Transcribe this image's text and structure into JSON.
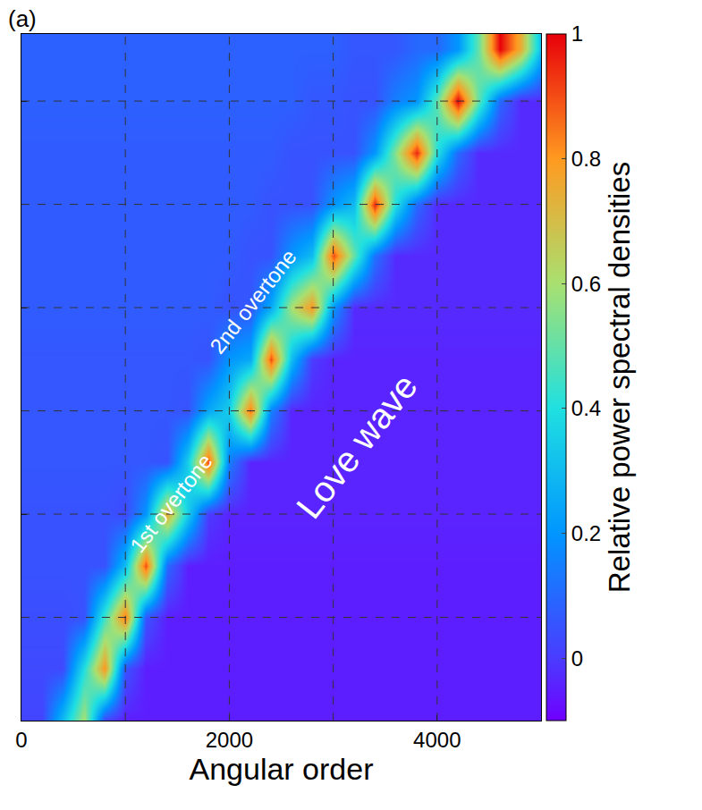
{
  "chart_data": {
    "type": "heatmap",
    "panel_label": "(a)",
    "x_label": "Angular order",
    "xlim": [
      0,
      5000
    ],
    "xticks": [
      0,
      2000,
      4000
    ],
    "ylim": [
      0,
      6.65
    ],
    "yticks": [
      1,
      2,
      3,
      4,
      5,
      6
    ],
    "tick_labels": "x",
    "grid": true,
    "annotations": [
      "1st overtone",
      "2nd overtone",
      "Love wave"
    ],
    "x": [
      0,
      200,
      400,
      600,
      800,
      1000,
      1200,
      1400,
      1600,
      1800,
      2000,
      2200,
      2400,
      2600,
      2800,
      3000,
      3200,
      3400,
      3600,
      3800,
      4000,
      4200,
      4400,
      4600,
      4800,
      5000
    ],
    "y": [
      0,
      0.5,
      1,
      1.5,
      2,
      2.5,
      3,
      3.5,
      4,
      4.5,
      5,
      5.5,
      6,
      6.5
    ],
    "z": [
      [
        0.02,
        0.02,
        0.3,
        0.6,
        0.02,
        -0.05,
        -0.05,
        -0.05,
        -0.05,
        -0.05,
        -0.05,
        -0.05,
        -0.05,
        -0.05,
        -0.05,
        -0.05,
        -0.05,
        -0.05,
        -0.05,
        -0.05,
        -0.05,
        -0.05,
        -0.05,
        -0.05,
        -0.05,
        -0.05
      ],
      [
        0.03,
        0.03,
        0.03,
        0.4,
        0.8,
        0.05,
        -0.05,
        -0.05,
        -0.05,
        -0.05,
        -0.05,
        -0.05,
        -0.05,
        -0.05,
        -0.05,
        -0.05,
        -0.05,
        -0.05,
        -0.05,
        -0.05,
        -0.05,
        -0.05,
        -0.05,
        -0.05,
        -0.05,
        -0.05
      ],
      [
        0.04,
        0.04,
        0.04,
        0.05,
        0.45,
        0.85,
        0.05,
        -0.05,
        -0.05,
        -0.05,
        -0.05,
        -0.05,
        -0.05,
        -0.05,
        -0.05,
        -0.05,
        -0.05,
        -0.05,
        -0.05,
        -0.05,
        -0.05,
        -0.05,
        -0.05,
        -0.05,
        -0.05,
        -0.05
      ],
      [
        0.05,
        0.05,
        0.05,
        0.05,
        0.05,
        0.3,
        0.9,
        0.1,
        -0.05,
        -0.05,
        -0.05,
        -0.05,
        -0.05,
        -0.05,
        -0.05,
        -0.05,
        -0.05,
        -0.05,
        -0.05,
        -0.05,
        -0.05,
        -0.05,
        -0.05,
        -0.05,
        -0.05,
        -0.05
      ],
      [
        0.05,
        0.05,
        0.05,
        0.05,
        0.05,
        0.03,
        0.2,
        0.75,
        0.35,
        0.0,
        -0.04,
        -0.04,
        -0.04,
        -0.04,
        -0.04,
        -0.04,
        -0.04,
        -0.04,
        -0.04,
        -0.04,
        -0.04,
        -0.04,
        -0.04,
        -0.04,
        -0.04,
        -0.04
      ],
      [
        0.06,
        0.06,
        0.06,
        0.06,
        0.06,
        0.06,
        0.06,
        0.05,
        0.35,
        0.9,
        0.15,
        -0.04,
        -0.04,
        -0.04,
        -0.04,
        -0.04,
        -0.04,
        -0.04,
        -0.04,
        -0.04,
        -0.04,
        -0.04,
        -0.04,
        -0.04,
        -0.04,
        -0.04
      ],
      [
        0.06,
        0.06,
        0.06,
        0.06,
        0.06,
        0.06,
        0.06,
        0.06,
        0.05,
        0.25,
        0.35,
        0.85,
        0.15,
        -0.04,
        -0.04,
        -0.04,
        -0.04,
        -0.04,
        -0.04,
        -0.04,
        -0.04,
        -0.04,
        -0.04,
        -0.04,
        -0.04,
        -0.04
      ],
      [
        0.06,
        0.06,
        0.06,
        0.06,
        0.06,
        0.06,
        0.06,
        0.06,
        0.06,
        0.05,
        0.2,
        0.25,
        0.9,
        0.3,
        0.0,
        -0.04,
        -0.04,
        -0.04,
        -0.04,
        -0.04,
        -0.04,
        -0.04,
        -0.04,
        -0.04,
        -0.04,
        -0.04
      ],
      [
        0.07,
        0.07,
        0.07,
        0.07,
        0.07,
        0.07,
        0.07,
        0.07,
        0.07,
        0.07,
        0.05,
        0.06,
        0.25,
        0.6,
        0.8,
        0.2,
        -0.03,
        -0.03,
        -0.03,
        -0.03,
        -0.03,
        -0.03,
        -0.03,
        -0.03,
        -0.03,
        -0.03
      ],
      [
        0.07,
        0.07,
        0.07,
        0.07,
        0.07,
        0.07,
        0.07,
        0.07,
        0.07,
        0.07,
        0.07,
        0.05,
        0.05,
        0.2,
        0.3,
        0.9,
        0.5,
        0.12,
        -0.03,
        -0.03,
        -0.03,
        -0.03,
        -0.03,
        -0.03,
        -0.03,
        -0.03
      ],
      [
        0.07,
        0.07,
        0.07,
        0.07,
        0.07,
        0.07,
        0.07,
        0.07,
        0.07,
        0.07,
        0.07,
        0.07,
        0.05,
        0.05,
        0.05,
        0.2,
        0.3,
        0.95,
        0.4,
        0.1,
        -0.03,
        -0.03,
        -0.03,
        -0.03,
        -0.03,
        -0.03
      ],
      [
        0.07,
        0.07,
        0.07,
        0.07,
        0.07,
        0.07,
        0.07,
        0.07,
        0.07,
        0.07,
        0.07,
        0.07,
        0.07,
        0.05,
        0.05,
        0.05,
        0.05,
        0.2,
        0.55,
        0.95,
        0.4,
        0.1,
        -0.03,
        -0.03,
        -0.03,
        -0.03
      ],
      [
        0.08,
        0.08,
        0.08,
        0.08,
        0.08,
        0.08,
        0.08,
        0.08,
        0.08,
        0.08,
        0.08,
        0.08,
        0.08,
        0.08,
        0.06,
        0.06,
        0.05,
        0.05,
        0.15,
        0.2,
        0.5,
        1.0,
        0.5,
        0.1,
        -0.03,
        -0.03
      ],
      [
        0.08,
        0.08,
        0.08,
        0.08,
        0.08,
        0.08,
        0.08,
        0.08,
        0.08,
        0.08,
        0.08,
        0.08,
        0.08,
        0.08,
        0.08,
        0.08,
        0.06,
        0.06,
        0.06,
        0.1,
        0.1,
        0.2,
        0.5,
        1.0,
        0.75,
        0.3
      ]
    ],
    "colorbar": {
      "title": "Relative power spectral densities",
      "range": [
        -0.1,
        1
      ],
      "ticks": [
        0,
        0.2,
        0.4,
        0.6,
        0.8,
        1
      ]
    }
  }
}
